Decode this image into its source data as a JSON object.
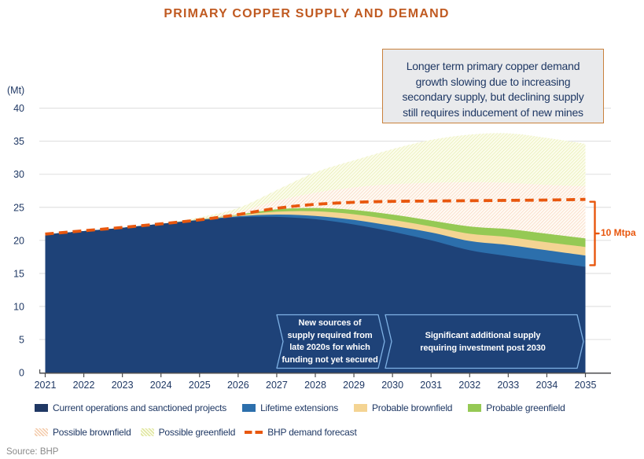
{
  "title": "PRIMARY COPPER SUPPLY AND DEMAND",
  "source": "Source: BHP",
  "annotation_box": {
    "lines": [
      "Longer term primary copper demand",
      "growth slowing due to increasing",
      "secondary supply, but declining supply",
      "still requires inducement of new mines"
    ]
  },
  "banners": [
    {
      "lines": [
        "New sources of",
        "supply required from",
        "late 2020s for which",
        "funding not yet secured"
      ]
    },
    {
      "lines": [
        "Significant additional supply",
        "requiring investment post 2030"
      ]
    }
  ],
  "bracket_label": "10 Mtpa",
  "colors": {
    "title": "#c05a21",
    "text": "#1f3864",
    "accent_orange": "#e8570e",
    "grid": "#e2e2e2",
    "axis": "#4d4d4f",
    "banner_border": "#7fb2e5",
    "annotation_bg": "#e9eaec",
    "annotation_border": "#c9813c",
    "source_text": "#8a8a8a"
  },
  "chart_data": {
    "type": "area",
    "stacked": true,
    "title": "PRIMARY COPPER SUPPLY AND DEMAND",
    "ylabel": "(Mt)",
    "ylim": [
      0,
      40
    ],
    "yticks": [
      0,
      5,
      10,
      15,
      20,
      25,
      30,
      35,
      40
    ],
    "categories": [
      2021,
      2022,
      2023,
      2024,
      2025,
      2026,
      2027,
      2028,
      2029,
      2030,
      2031,
      2032,
      2033,
      2034,
      2035
    ],
    "series": [
      {
        "name": "Current operations and sanctioned projects",
        "color": "#1e4278",
        "style": "solid",
        "values": [
          20.9,
          21.4,
          21.9,
          22.5,
          23.05,
          23.5,
          23.55,
          23.2,
          22.4,
          21.3,
          20.0,
          18.5,
          17.6,
          16.8,
          16.0
        ]
      },
      {
        "name": "Lifetime extensions",
        "color": "#2c6fac",
        "style": "solid",
        "values": [
          0,
          0,
          0,
          0,
          0.05,
          0.15,
          0.35,
          0.5,
          0.7,
          0.9,
          1.2,
          1.4,
          1.7,
          1.7,
          1.7
        ]
      },
      {
        "name": "Probable brownfield",
        "color": "#f4d493",
        "style": "solid",
        "values": [
          0,
          0,
          0,
          0,
          0.05,
          0.15,
          0.45,
          0.7,
          0.85,
          0.9,
          0.9,
          1.1,
          1.2,
          1.2,
          1.3
        ]
      },
      {
        "name": "Probable greenfield",
        "color": "#95c954",
        "style": "solid",
        "values": [
          0,
          0,
          0,
          0,
          0.05,
          0.1,
          0.35,
          0.5,
          0.65,
          0.8,
          0.9,
          1.1,
          1.2,
          1.3,
          1.3
        ]
      },
      {
        "name": "Possible brownfield",
        "color": "#f5cdb0",
        "style": "hatch",
        "pattern": "hatch-peach",
        "bg": "#fffaf4",
        "values": [
          0,
          0,
          0,
          0,
          0.1,
          0.4,
          1.3,
          2.3,
          3.4,
          4.6,
          5.7,
          6.7,
          7.0,
          7.4,
          7.9
        ]
      },
      {
        "name": "Possible greenfield",
        "color": "#e4e9a2",
        "style": "hatch",
        "pattern": "hatch-yellow",
        "bg": "#fbfcec",
        "values": [
          0,
          0,
          0,
          0,
          0.2,
          0.6,
          1.6,
          3.1,
          4.1,
          5.3,
          6.5,
          7.2,
          7.5,
          7.1,
          6.4
        ]
      }
    ],
    "line_series": {
      "name": "BHP demand forecast",
      "color": "#e8570e",
      "dash": true,
      "values": [
        20.95,
        21.45,
        21.95,
        22.5,
        23.1,
        23.9,
        24.85,
        25.45,
        25.75,
        25.9,
        25.95,
        26.0,
        26.05,
        26.1,
        26.2
      ]
    },
    "annotations": [
      "Longer term primary copper demand growth slowing due to increasing secondary supply, but declining supply still requires inducement of new mines",
      "New sources of supply required from late 2020s for which funding not yet secured",
      "Significant additional supply requiring investment post 2030",
      "10 Mtpa"
    ],
    "legend_position": "bottom"
  }
}
